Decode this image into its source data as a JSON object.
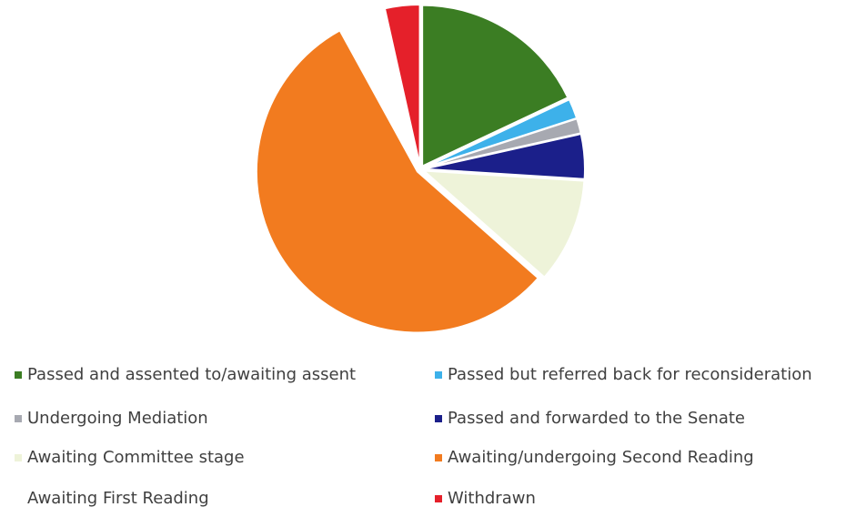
{
  "chart_data": {
    "type": "pie",
    "categories": [
      "Passed and assented to/awaiting assent",
      "Passed but referred back for reconsideration",
      "Undergoing Mediation",
      "Passed and forwarded to the Senate",
      "Awaiting Committee stage",
      "Awaiting/undergoing Second Reading",
      "Awaiting First Reading",
      "Withdrawn"
    ],
    "values": [
      18,
      2,
      1.5,
      4.5,
      10.5,
      55.5,
      4.5,
      3.5
    ],
    "colors": [
      "#3b7d23",
      "#3db1ea",
      "#a7a9b1",
      "#1b1f8a",
      "#eef3d9",
      "#f27b1f",
      "#ffffff",
      "#e5202a"
    ],
    "legend": "bottom"
  }
}
